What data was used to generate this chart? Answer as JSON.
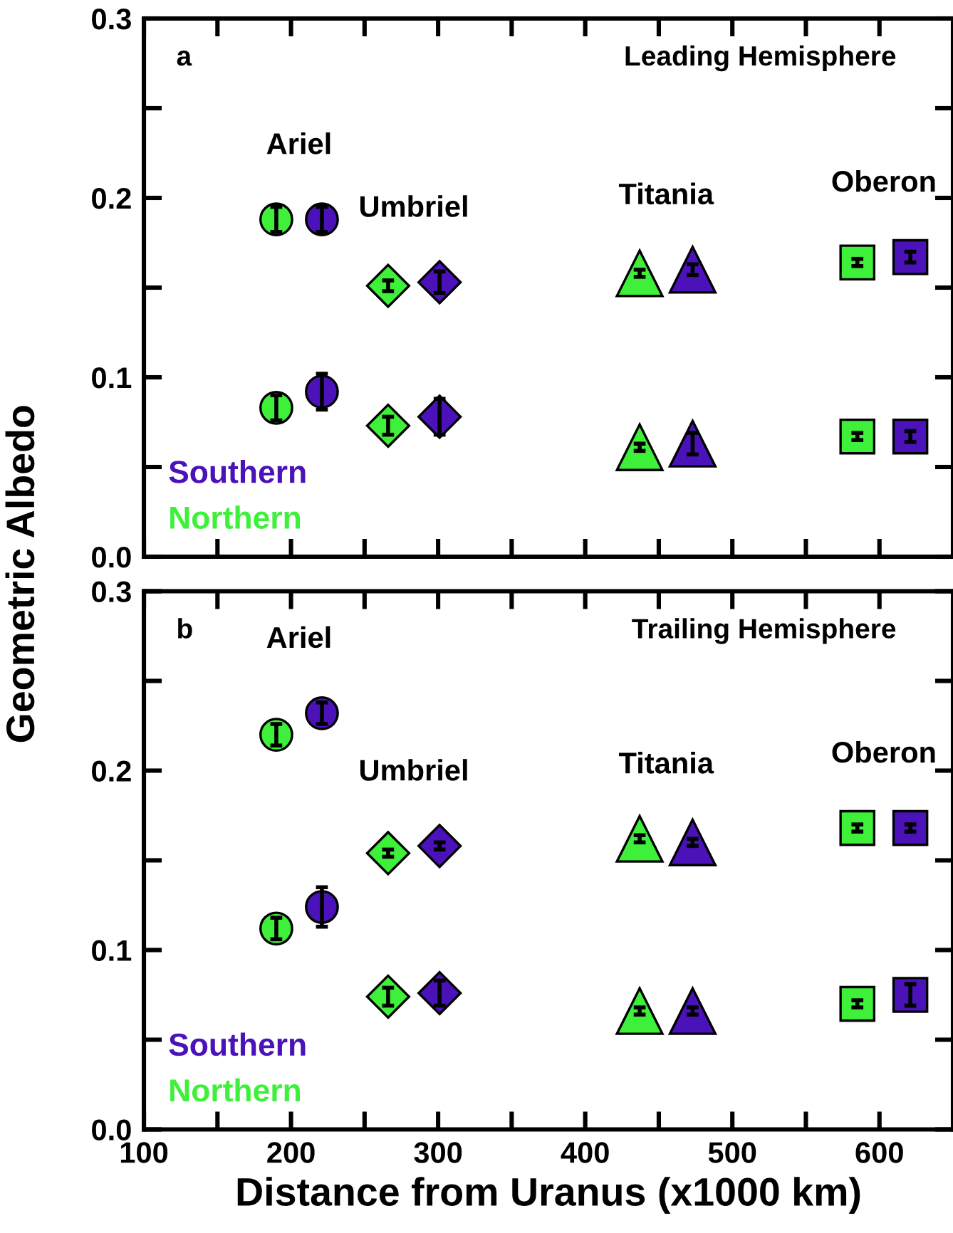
{
  "chart_data": [
    {
      "type": "scatter",
      "title": "Leading Hemisphere",
      "ylabel": "Geometric Albedo",
      "xlim": [
        100,
        650
      ],
      "ylim": [
        0,
        0.3
      ],
      "xticks": [
        {
          "value": 100,
          "label": null
        },
        {
          "value": 150,
          "label": null
        },
        {
          "value": 200,
          "label": null
        },
        {
          "value": 250,
          "label": null
        },
        {
          "value": 300,
          "label": null
        },
        {
          "value": 350,
          "label": null
        },
        {
          "value": 400,
          "label": null
        },
        {
          "value": 450,
          "label": null
        },
        {
          "value": 500,
          "label": null
        },
        {
          "value": 550,
          "label": null
        },
        {
          "value": 600,
          "label": null
        }
      ],
      "yticks": [
        {
          "value": 0,
          "label": "0.0"
        },
        {
          "value": 0.05,
          "label": null
        },
        {
          "value": 0.1,
          "label": "0.1"
        },
        {
          "value": 0.15,
          "label": null
        },
        {
          "value": 0.2,
          "label": "0.2"
        },
        {
          "value": 0.25,
          "label": null
        },
        {
          "value": 0.3,
          "label": "0.3"
        }
      ],
      "tick_labels": "y",
      "grid": false,
      "legend": "bottom left",
      "annotations": [
        "a",
        "Ariel",
        "Umbriel",
        "Titania",
        "Oberon"
      ],
      "series": [
        {
          "name": "Northern",
          "color": "#3ff03a",
          "marker": "circle",
          "x": [
            190,
            190
          ],
          "values": [
            0.188,
            0.083
          ],
          "errors": [
            0.007,
            0.007
          ]
        },
        {
          "name": "Southern",
          "color": "#4a12b8",
          "marker": "circle",
          "x": [
            221,
            221
          ],
          "values": [
            0.188,
            0.092
          ],
          "errors": [
            0.007,
            0.01
          ]
        },
        {
          "color": "#3ff03a",
          "marker": "diamond",
          "x": [
            266,
            266
          ],
          "values": [
            0.151,
            0.073
          ],
          "errors": [
            0.003,
            0.005
          ]
        },
        {
          "color": "#4a12b8",
          "marker": "diamond",
          "x": [
            301,
            301
          ],
          "values": [
            0.153,
            0.078
          ],
          "errors": [
            0.006,
            0.01
          ]
        },
        {
          "color": "#3ff03a",
          "marker": "triangle",
          "x": [
            437,
            437
          ],
          "values": [
            0.158,
            0.061
          ],
          "errors": [
            0.002,
            0.002
          ]
        },
        {
          "color": "#4a12b8",
          "marker": "triangle",
          "x": [
            473,
            473
          ],
          "values": [
            0.16,
            0.063
          ],
          "errors": [
            0.003,
            0.006
          ]
        },
        {
          "color": "#3ff03a",
          "marker": "square",
          "x": [
            585,
            585
          ],
          "values": [
            0.164,
            0.067
          ],
          "errors": [
            0.002,
            0.002
          ]
        },
        {
          "color": "#4a12b8",
          "marker": "square",
          "x": [
            621,
            621
          ],
          "values": [
            0.167,
            0.067
          ],
          "errors": [
            0.003,
            0.003
          ]
        }
      ]
    },
    {
      "type": "scatter",
      "title": "Trailing Hemisphere",
      "xlabel": "Distance from Uranus (x1000 km)",
      "xlim": [
        100,
        650
      ],
      "ylim": [
        0,
        0.3
      ],
      "xticks": [
        100,
        {
          "value": 150,
          "label": null
        },
        200,
        {
          "value": 250,
          "label": null
        },
        300,
        {
          "value": 350,
          "label": null
        },
        400,
        {
          "value": 450,
          "label": null
        },
        500,
        {
          "value": 550,
          "label": null
        },
        600
      ],
      "yticks": [
        {
          "value": 0,
          "label": "0.0"
        },
        {
          "value": 0.05,
          "label": null
        },
        {
          "value": 0.1,
          "label": "0.1"
        },
        {
          "value": 0.15,
          "label": null
        },
        {
          "value": 0.2,
          "label": "0.2"
        },
        {
          "value": 0.25,
          "label": null
        },
        {
          "value": 0.3,
          "label": "0.3"
        }
      ],
      "grid": false,
      "legend": "bottom left",
      "annotations": [
        "b",
        "Ariel",
        "Umbriel",
        "Titania",
        "Oberon"
      ],
      "series": [
        {
          "name": "Northern",
          "color": "#3ff03a",
          "marker": "circle",
          "x": [
            190,
            190
          ],
          "values": [
            0.22,
            0.112
          ],
          "errors": [
            0.006,
            0.006
          ]
        },
        {
          "name": "Southern",
          "color": "#4a12b8",
          "marker": "circle",
          "x": [
            221,
            221
          ],
          "values": [
            0.232,
            0.124
          ],
          "errors": [
            0.006,
            0.011
          ]
        },
        {
          "color": "#3ff03a",
          "marker": "diamond",
          "x": [
            266,
            266
          ],
          "values": [
            0.154,
            0.074
          ],
          "errors": [
            0.002,
            0.005
          ]
        },
        {
          "color": "#4a12b8",
          "marker": "diamond",
          "x": [
            301,
            301
          ],
          "values": [
            0.158,
            0.076
          ],
          "errors": [
            0.002,
            0.007
          ]
        },
        {
          "color": "#3ff03a",
          "marker": "triangle",
          "x": [
            437,
            437
          ],
          "values": [
            0.162,
            0.066
          ],
          "errors": [
            0.002,
            0.002
          ]
        },
        {
          "color": "#4a12b8",
          "marker": "triangle",
          "x": [
            473,
            473
          ],
          "values": [
            0.16,
            0.066
          ],
          "errors": [
            0.002,
            0.002
          ]
        },
        {
          "color": "#3ff03a",
          "marker": "square",
          "x": [
            585,
            585
          ],
          "values": [
            0.168,
            0.07
          ],
          "errors": [
            0.002,
            0.002
          ]
        },
        {
          "color": "#4a12b8",
          "marker": "square",
          "x": [
            621,
            621
          ],
          "values": [
            0.168,
            0.075
          ],
          "errors": [
            0.002,
            0.006
          ]
        }
      ]
    }
  ]
}
